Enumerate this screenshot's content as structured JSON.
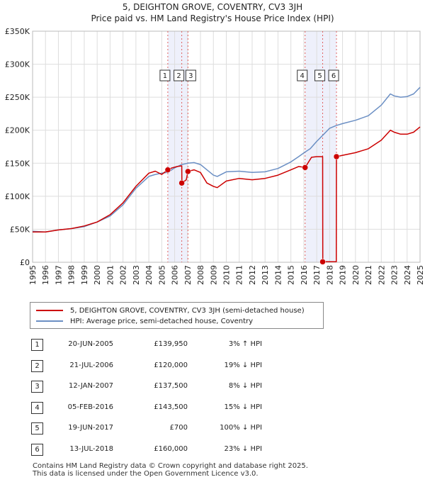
{
  "chart_data": {
    "type": "line",
    "title": "5, DEIGHTON GROVE, COVENTRY, CV3 3JH",
    "subtitle": "Price paid vs. HM Land Registry's House Price Index (HPI)",
    "xlim": [
      1995,
      2025
    ],
    "ylim": [
      0,
      350000
    ],
    "y_ticks": [
      {
        "value": 0,
        "label": "£0"
      },
      {
        "value": 50000,
        "label": "£50K"
      },
      {
        "value": 100000,
        "label": "£100K"
      },
      {
        "value": 150000,
        "label": "£150K"
      },
      {
        "value": 200000,
        "label": "£200K"
      },
      {
        "value": 250000,
        "label": "£250K"
      },
      {
        "value": 300000,
        "label": "£300K"
      },
      {
        "value": 350000,
        "label": "£350K"
      }
    ],
    "x_ticks": [
      "1995",
      "1996",
      "1997",
      "1998",
      "1999",
      "2000",
      "2001",
      "2002",
      "2003",
      "2004",
      "2005",
      "2006",
      "2007",
      "2008",
      "2009",
      "2010",
      "2011",
      "2012",
      "2013",
      "2014",
      "2015",
      "2016",
      "2017",
      "2018",
      "2019",
      "2020",
      "2021",
      "2022",
      "2023",
      "2024",
      "2025"
    ],
    "grid": true,
    "legend_position": "bottom",
    "shaded_periods": [
      [
        2005.47,
        2007.03
      ],
      [
        2016.1,
        2018.53
      ]
    ],
    "colors": {
      "property": "#cc0000",
      "hpi": "#6b8fc4",
      "shade": "#eef0fb",
      "event_line": "#e06060"
    },
    "series": [
      {
        "name": "5, DEIGHTON GROVE, COVENTRY, CV3 3JH (semi-detached house)",
        "color": "#cc0000",
        "x": [
          1995.0,
          1996.0,
          1997.0,
          1998.0,
          1999.0,
          2000.0,
          2001.0,
          2002.0,
          2003.0,
          2004.0,
          2004.5,
          2005.0,
          2005.47,
          2005.8,
          2006.2,
          2006.55,
          2006.56,
          2006.9,
          2007.03,
          2007.5,
          2008.0,
          2008.5,
          2009.0,
          2009.3,
          2010.0,
          2011.0,
          2012.0,
          2013.0,
          2014.0,
          2015.0,
          2015.6,
          2016.1,
          2016.6,
          2017.0,
          2017.46,
          2017.47,
          2017.9,
          2018.0,
          2018.52,
          2018.53,
          2019.0,
          2020.0,
          2021.0,
          2022.0,
          2022.7,
          2023.0,
          2023.5,
          2024.0,
          2024.5,
          2025.0
        ],
        "values": [
          46000,
          46000,
          49000,
          51000,
          55000,
          61000,
          72000,
          90000,
          115000,
          135000,
          138000,
          133000,
          139950,
          143000,
          145000,
          146000,
          120000,
          125000,
          137500,
          140000,
          136000,
          120000,
          115000,
          113000,
          123000,
          127000,
          125000,
          127000,
          132000,
          140000,
          145000,
          143500,
          159000,
          160000,
          160000,
          700,
          700,
          700,
          700,
          160000,
          162000,
          166000,
          172000,
          185000,
          200000,
          197000,
          194000,
          194000,
          197000,
          205000
        ]
      },
      {
        "name": "HPI: Average price, semi-detached house, Coventry",
        "color": "#6b8fc4",
        "x": [
          1995.0,
          1996.0,
          1997.0,
          1998.0,
          1999.0,
          2000.0,
          2001.0,
          2002.0,
          2003.0,
          2004.0,
          2004.5,
          2005.0,
          2005.47,
          2006.0,
          2006.55,
          2007.0,
          2007.5,
          2008.0,
          2008.5,
          2009.0,
          2009.3,
          2010.0,
          2011.0,
          2012.0,
          2013.0,
          2014.0,
          2015.0,
          2015.6,
          2016.1,
          2016.5,
          2017.0,
          2017.5,
          2018.0,
          2018.5,
          2019.0,
          2020.0,
          2021.0,
          2022.0,
          2022.7,
          2023.0,
          2023.5,
          2024.0,
          2024.5,
          2025.0
        ],
        "values": [
          47000,
          46000,
          49000,
          51000,
          54000,
          61000,
          70000,
          87000,
          112000,
          130000,
          133000,
          135000,
          136000,
          143000,
          148000,
          150000,
          151000,
          148000,
          140000,
          132000,
          130000,
          137000,
          138000,
          136000,
          137000,
          142000,
          152000,
          160000,
          167000,
          172000,
          183000,
          193000,
          203000,
          207000,
          210000,
          215000,
          222000,
          238000,
          255000,
          252000,
          250000,
          251000,
          255000,
          265000
        ]
      }
    ],
    "transactions": [
      {
        "id": "1",
        "x": 2005.47,
        "y": 139950
      },
      {
        "id": "2",
        "x": 2006.55,
        "y": 120000
      },
      {
        "id": "3",
        "x": 2007.03,
        "y": 137500
      },
      {
        "id": "4",
        "x": 2016.1,
        "y": 143500
      },
      {
        "id": "5",
        "x": 2017.46,
        "y": 700
      },
      {
        "id": "6",
        "x": 2018.53,
        "y": 160000
      }
    ]
  },
  "legend": {
    "property_label": "5, DEIGHTON GROVE, COVENTRY, CV3 3JH (semi-detached house)",
    "hpi_label": "HPI: Average price, semi-detached house, Coventry"
  },
  "table": [
    {
      "num": "1",
      "date": "20-JUN-2005",
      "price": "£139,950",
      "pct": "3% ↑ HPI"
    },
    {
      "num": "2",
      "date": "21-JUL-2006",
      "price": "£120,000",
      "pct": "19% ↓ HPI"
    },
    {
      "num": "3",
      "date": "12-JAN-2007",
      "price": "£137,500",
      "pct": "8% ↓ HPI"
    },
    {
      "num": "4",
      "date": "05-FEB-2016",
      "price": "£143,500",
      "pct": "15% ↓ HPI"
    },
    {
      "num": "5",
      "date": "19-JUN-2017",
      "price": "£700",
      "pct": "100% ↓ HPI"
    },
    {
      "num": "6",
      "date": "13-JUL-2018",
      "price": "£160,000",
      "pct": "23% ↓ HPI"
    }
  ],
  "footer": {
    "line1": "Contains HM Land Registry data © Crown copyright and database right 2025.",
    "line2": "This data is licensed under the Open Government Licence v3.0."
  }
}
